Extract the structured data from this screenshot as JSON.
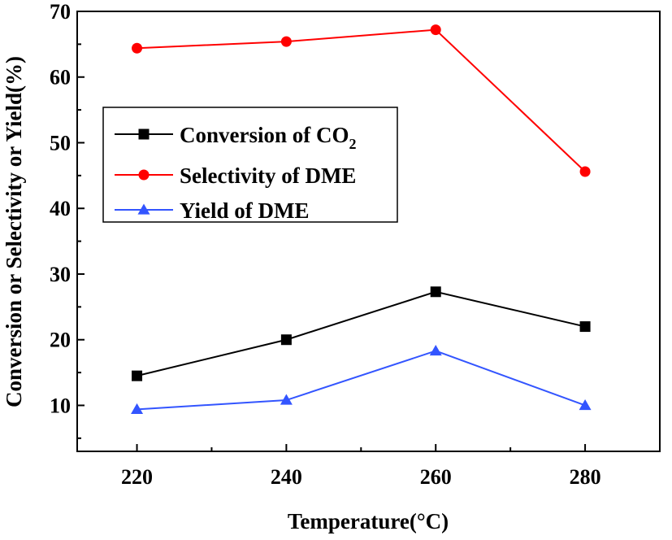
{
  "chart_data": {
    "type": "line",
    "title": "",
    "xlabel": "Temperature(°C)",
    "ylabel": "Conversion or Selectivity or Yield(%)",
    "x": [
      220,
      240,
      260,
      280
    ],
    "xlim": [
      212,
      290
    ],
    "ylim": [
      3,
      70
    ],
    "x_ticks": [
      "220",
      "240",
      "260",
      "280"
    ],
    "y_ticks": [
      "10",
      "20",
      "30",
      "40",
      "50",
      "60",
      "70"
    ],
    "grid": false,
    "legend_position": "upper-left",
    "series": [
      {
        "name": "Conversion of CO",
        "name_subscript": "2",
        "color": "#000000",
        "marker": "square",
        "values": [
          14.5,
          20.0,
          27.3,
          22.0
        ]
      },
      {
        "name": "Selectivity of DME",
        "color": "#ff0000",
        "marker": "circle",
        "values": [
          64.4,
          65.4,
          67.2,
          45.6
        ]
      },
      {
        "name": "Yield of DME",
        "color": "#3355ff",
        "marker": "triangle",
        "values": [
          9.4,
          10.8,
          18.3,
          10.0
        ]
      }
    ]
  }
}
